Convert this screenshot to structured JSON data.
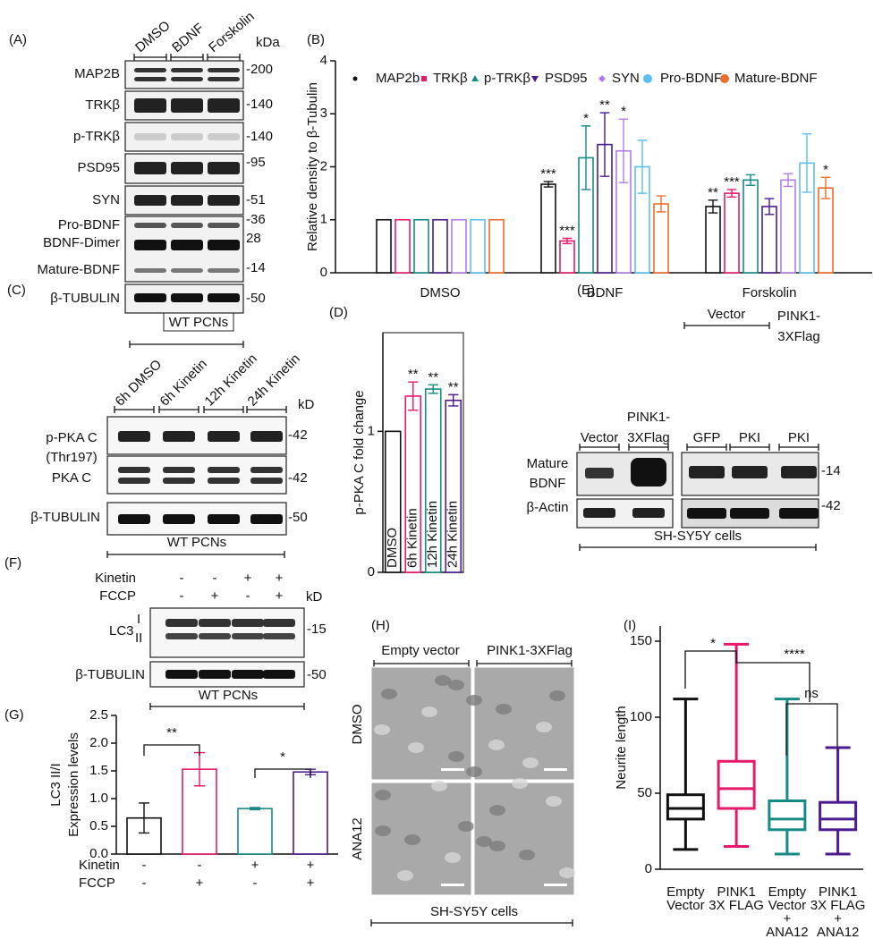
{
  "panels": {
    "A": {
      "letter": "(A)",
      "lanes": [
        "DMSO",
        "BDNF",
        "Forskolin"
      ],
      "unit": "kDa",
      "rows": [
        {
          "labels": [
            "MAP2B"
          ],
          "kda": [
            "-200"
          ]
        },
        {
          "labels": [
            "TRKβ"
          ],
          "kda": [
            "-140"
          ]
        },
        {
          "labels": [
            "p-TRKβ"
          ],
          "kda": [
            "-140"
          ]
        },
        {
          "labels": [
            "PSD95"
          ],
          "kda": [
            "-95"
          ]
        },
        {
          "labels": [
            "SYN"
          ],
          "kda": [
            "-51"
          ]
        },
        {
          "labels": [
            "Pro-BDNF",
            "BDNF-Dimer"
          ],
          "kda": [
            "-36",
            "28"
          ]
        },
        {
          "labels": [
            "Mature-BDNF"
          ],
          "kda": [
            "-14"
          ]
        },
        {
          "labels": [
            "β-TUBULIN"
          ],
          "kda": [
            "-50"
          ]
        }
      ],
      "footer": "WT PCNs"
    },
    "C": {
      "letter": "(C)",
      "lanes": [
        "6h DMSO",
        "6h Kinetin",
        "12h Kinetin",
        "24h Kinetin"
      ],
      "unit": "kD",
      "rows": [
        {
          "labels": [
            "p-PKA C",
            "(Thr197)"
          ],
          "kda": [
            "-42"
          ]
        },
        {
          "labels": [
            "PKA C"
          ],
          "kda": [
            "-42"
          ]
        },
        {
          "labels": [
            "β-TUBULIN"
          ],
          "kda": [
            "-50"
          ]
        }
      ],
      "footer": "WT PCNs"
    },
    "E": {
      "letter": "(E)",
      "lanes": [
        [
          "Vector"
        ],
        [
          "PINK1-",
          "3XFlag"
        ],
        [
          "GFP"
        ],
        [
          "PKI"
        ],
        [
          "PKI"
        ]
      ],
      "groups": [
        [
          "Vector"
        ],
        [
          "PINK1-",
          "3XFlag"
        ]
      ],
      "rows": [
        {
          "labels": [
            "Mature",
            "BDNF"
          ],
          "kda": [
            "-14"
          ]
        },
        {
          "labels": [
            "β-Actin"
          ],
          "kda": [
            "-42"
          ]
        }
      ],
      "footer": "SH-SY5Y cells"
    },
    "F": {
      "letter": "(F)",
      "conditions": [
        {
          "name": "Kinetin",
          "marks": [
            "-",
            "-",
            "+",
            "+"
          ]
        },
        {
          "name": "FCCP",
          "marks": [
            "-",
            "+",
            "-",
            "+"
          ]
        }
      ],
      "unit": "kD",
      "rows": [
        {
          "labels": [
            "LC3",
            "I",
            "II"
          ],
          "kda": [
            "-15"
          ]
        },
        {
          "labels": [
            "β-TUBULIN"
          ],
          "kda": [
            "-50"
          ]
        }
      ],
      "footer": "WT PCNs"
    },
    "H": {
      "letter": "(H)",
      "columns": [
        "Empty vector",
        "PINK1-3XFlag"
      ],
      "rows": [
        "DMSO",
        "ANA12"
      ],
      "footer": "SH-SY5Y cells"
    }
  },
  "chart_data": [
    {
      "type": "bar",
      "letter": "(B)",
      "ylabel": "Relative density to β-Tubulin",
      "categories": [
        "DMSO",
        "BDNF",
        "Forskolin"
      ],
      "series": [
        {
          "name": "MAP2b",
          "color": "#111111",
          "values": [
            1,
            1.67,
            1.25
          ],
          "errors": [
            0,
            0.05,
            0.12
          ],
          "significance": [
            null,
            "***",
            "**"
          ]
        },
        {
          "name": "TRKβ",
          "color": "#e6196b",
          "values": [
            1,
            0.6,
            1.5
          ],
          "errors": [
            0,
            0.05,
            0.07
          ],
          "significance": [
            null,
            "***",
            "***"
          ]
        },
        {
          "name": "p-TRKβ",
          "color": "#178a85",
          "values": [
            1,
            2.17,
            1.75
          ],
          "errors": [
            0,
            0.6,
            0.1
          ],
          "significance": [
            null,
            "*",
            null
          ]
        },
        {
          "name": "PSD95",
          "color": "#4b1b8f",
          "values": [
            1,
            2.42,
            1.25
          ],
          "errors": [
            0,
            0.6,
            0.15
          ],
          "significance": [
            null,
            "**",
            null
          ]
        },
        {
          "name": "SYN",
          "color": "#b07de8",
          "values": [
            1,
            2.3,
            1.75
          ],
          "errors": [
            0,
            0.6,
            0.12
          ],
          "significance": [
            null,
            "*",
            null
          ]
        },
        {
          "name": "Pro-BDNF",
          "color": "#5bc0f0",
          "values": [
            1,
            2.0,
            2.07
          ],
          "errors": [
            0,
            0.5,
            0.55
          ],
          "significance": [
            null,
            null,
            null
          ]
        },
        {
          "name": "Mature-BDNF",
          "color": "#e8702a",
          "values": [
            1,
            1.3,
            1.6
          ],
          "errors": [
            0,
            0.15,
            0.2
          ],
          "significance": [
            null,
            null,
            "*"
          ]
        }
      ],
      "ylim": [
        0,
        4
      ],
      "yticks": [
        0,
        1,
        2,
        3,
        4
      ]
    },
    {
      "type": "bar",
      "letter": "(D)",
      "ylabel": "p-PKA C fold change",
      "categories": [
        "DMSO",
        "6h Kinetin",
        "12h Kinetin",
        "24h Kinetin"
      ],
      "values": [
        1,
        1.25,
        1.3,
        1.22
      ],
      "errors": [
        0,
        0.1,
        0.03,
        0.04
      ],
      "significance": [
        null,
        "**",
        "**",
        "**"
      ],
      "colors": [
        "#111111",
        "#e6196b",
        "#178a85",
        "#4b1b8f"
      ],
      "ylim": [
        0,
        1.7
      ],
      "yticks": [
        0,
        1
      ]
    },
    {
      "type": "bar",
      "letter": "(G)",
      "ylabel": [
        "LC3 II/I",
        "Expression levels"
      ],
      "categories": [
        null,
        null,
        null,
        null
      ],
      "values": [
        0.65,
        1.53,
        0.82,
        1.48
      ],
      "errors": [
        0.27,
        0.3,
        0.02,
        0.05
      ],
      "colors": [
        "#111111",
        "#e6196b",
        "#178a85",
        "#4b1b8f"
      ],
      "conditions": [
        {
          "name": "Kinetin",
          "marks": [
            "-",
            "-",
            "+",
            "+"
          ]
        },
        {
          "name": "FCCP",
          "marks": [
            "-",
            "+",
            "-",
            "+"
          ]
        }
      ],
      "comparison_labels": [
        "**",
        "*"
      ],
      "ylim": [
        0,
        2.5
      ],
      "yticks": [
        {
          "value": 0,
          "label": "0.0"
        },
        0.5,
        {
          "value": 1,
          "label": "1.0"
        },
        1.5,
        {
          "value": 2,
          "label": "2.0"
        },
        2.5
      ]
    },
    {
      "type": "box",
      "letter": "(I)",
      "ylabel": "Neurite length",
      "categories": [
        [
          "Empty",
          "Vector"
        ],
        [
          "PINK1",
          "3X FLAG"
        ],
        [
          "Empty",
          "Vector",
          "+",
          "ANA12"
        ],
        [
          "PINK1",
          "3X FLAG",
          "+",
          "ANA12"
        ]
      ],
      "boxes": [
        {
          "min": 13,
          "q1": 33,
          "median": 40,
          "q3": 49,
          "max": 112
        },
        {
          "min": 15,
          "q1": 40,
          "median": 53,
          "q3": 71,
          "max": 148
        },
        {
          "min": 10,
          "q1": 26,
          "median": 33,
          "q3": 45,
          "max": 112
        },
        {
          "min": 10,
          "q1": 26,
          "median": 33,
          "q3": 44,
          "max": 80
        }
      ],
      "colors": [
        "#111111",
        "#e6196b",
        "#178a85",
        "#4b1b8f"
      ],
      "comparison_labels": [
        "*",
        "****",
        "ns"
      ],
      "ylim": [
        0,
        160
      ],
      "yticks": [
        0,
        50,
        100,
        150
      ]
    }
  ]
}
